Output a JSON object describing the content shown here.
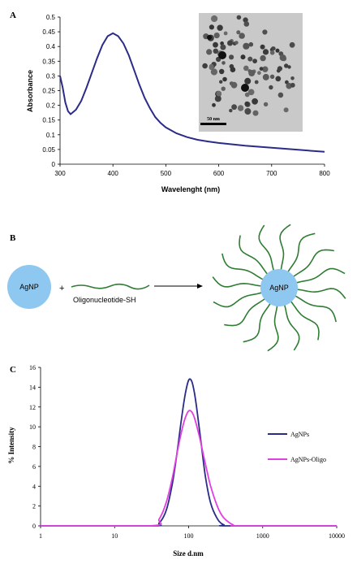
{
  "panels": {
    "a": "A",
    "b": "B",
    "c": "C"
  },
  "colors": {
    "uv_line": "#2b2b88",
    "agnp_series": "#2b2b88",
    "oligo_series": "#e040e0",
    "nanoparticle": "#8ec7ef",
    "oligo_strand": "#2e7d32",
    "tem_bg": "#c9c9c9"
  },
  "scheme": {
    "agnp_label": "AgNP",
    "plus": "+",
    "oligo_label": "Oligonucleotide-SH",
    "product_label": "AgNP"
  },
  "tem": {
    "scale_label": "50 nm"
  },
  "chart_data": [
    {
      "id": "uv-vis",
      "type": "line",
      "title": "",
      "xlabel": "Wavelenght (nm)",
      "ylabel": "Absorbance",
      "xlim": [
        300,
        800
      ],
      "ylim": [
        0,
        0.5
      ],
      "xticks": [
        300,
        400,
        500,
        600,
        700,
        800
      ],
      "yticks": [
        0,
        0.05,
        0.1,
        0.15,
        0.2,
        0.25,
        0.3,
        0.35,
        0.4,
        0.45,
        0.5
      ],
      "ytick_labels": [
        "0",
        "0.05",
        "0.1",
        "0.15",
        "0.2",
        "0.25",
        "0.3",
        "0.35",
        "0.4",
        "0.45",
        "0.5"
      ],
      "grid": false,
      "series": [
        {
          "x": [
            300,
            305,
            310,
            315,
            320,
            330,
            340,
            350,
            360,
            370,
            380,
            390,
            400,
            410,
            420,
            430,
            440,
            450,
            460,
            470,
            480,
            490,
            500,
            520,
            540,
            560,
            580,
            600,
            650,
            700,
            750,
            800
          ],
          "y": [
            0.3,
            0.26,
            0.21,
            0.18,
            0.17,
            0.185,
            0.215,
            0.26,
            0.31,
            0.36,
            0.405,
            0.435,
            0.445,
            0.435,
            0.41,
            0.37,
            0.32,
            0.27,
            0.225,
            0.19,
            0.16,
            0.14,
            0.125,
            0.105,
            0.092,
            0.083,
            0.077,
            0.072,
            0.063,
            0.056,
            0.049,
            0.042
          ]
        }
      ]
    },
    {
      "id": "dls",
      "type": "line",
      "title": "",
      "xlabel": "Size  d.nm",
      "ylabel": "% Intensity",
      "xscale": "log",
      "xlim": [
        1,
        10000
      ],
      "ylim": [
        0,
        16
      ],
      "xticks": [
        1,
        10,
        100,
        1000,
        10000
      ],
      "yticks": [
        0,
        2,
        4,
        6,
        8,
        10,
        12,
        14,
        16
      ],
      "grid": false,
      "legend": "right",
      "series": [
        {
          "name": "AgNPs",
          "x": [
            1,
            30,
            40,
            50,
            60,
            70,
            80,
            90,
            100,
            110,
            120,
            130,
            150,
            170,
            200,
            250,
            300,
            350,
            10000
          ],
          "y": [
            0,
            0,
            0.3,
            1.6,
            4.2,
            7.5,
            10.8,
            13.3,
            14.7,
            14.6,
            13.4,
            11.6,
            7.9,
            4.8,
            2.2,
            0.6,
            0.1,
            0,
            0
          ]
        },
        {
          "name": "AgNPs-Oligo",
          "x": [
            1,
            30,
            40,
            50,
            60,
            70,
            80,
            90,
            100,
            110,
            120,
            140,
            160,
            180,
            200,
            250,
            300,
            400,
            500,
            10000
          ],
          "y": [
            0,
            0,
            0.7,
            2.4,
            4.8,
            7.4,
            9.5,
            10.9,
            11.6,
            11.5,
            10.9,
            9.0,
            7.0,
            5.3,
            3.9,
            1.8,
            0.8,
            0.1,
            0,
            0
          ]
        }
      ]
    }
  ]
}
